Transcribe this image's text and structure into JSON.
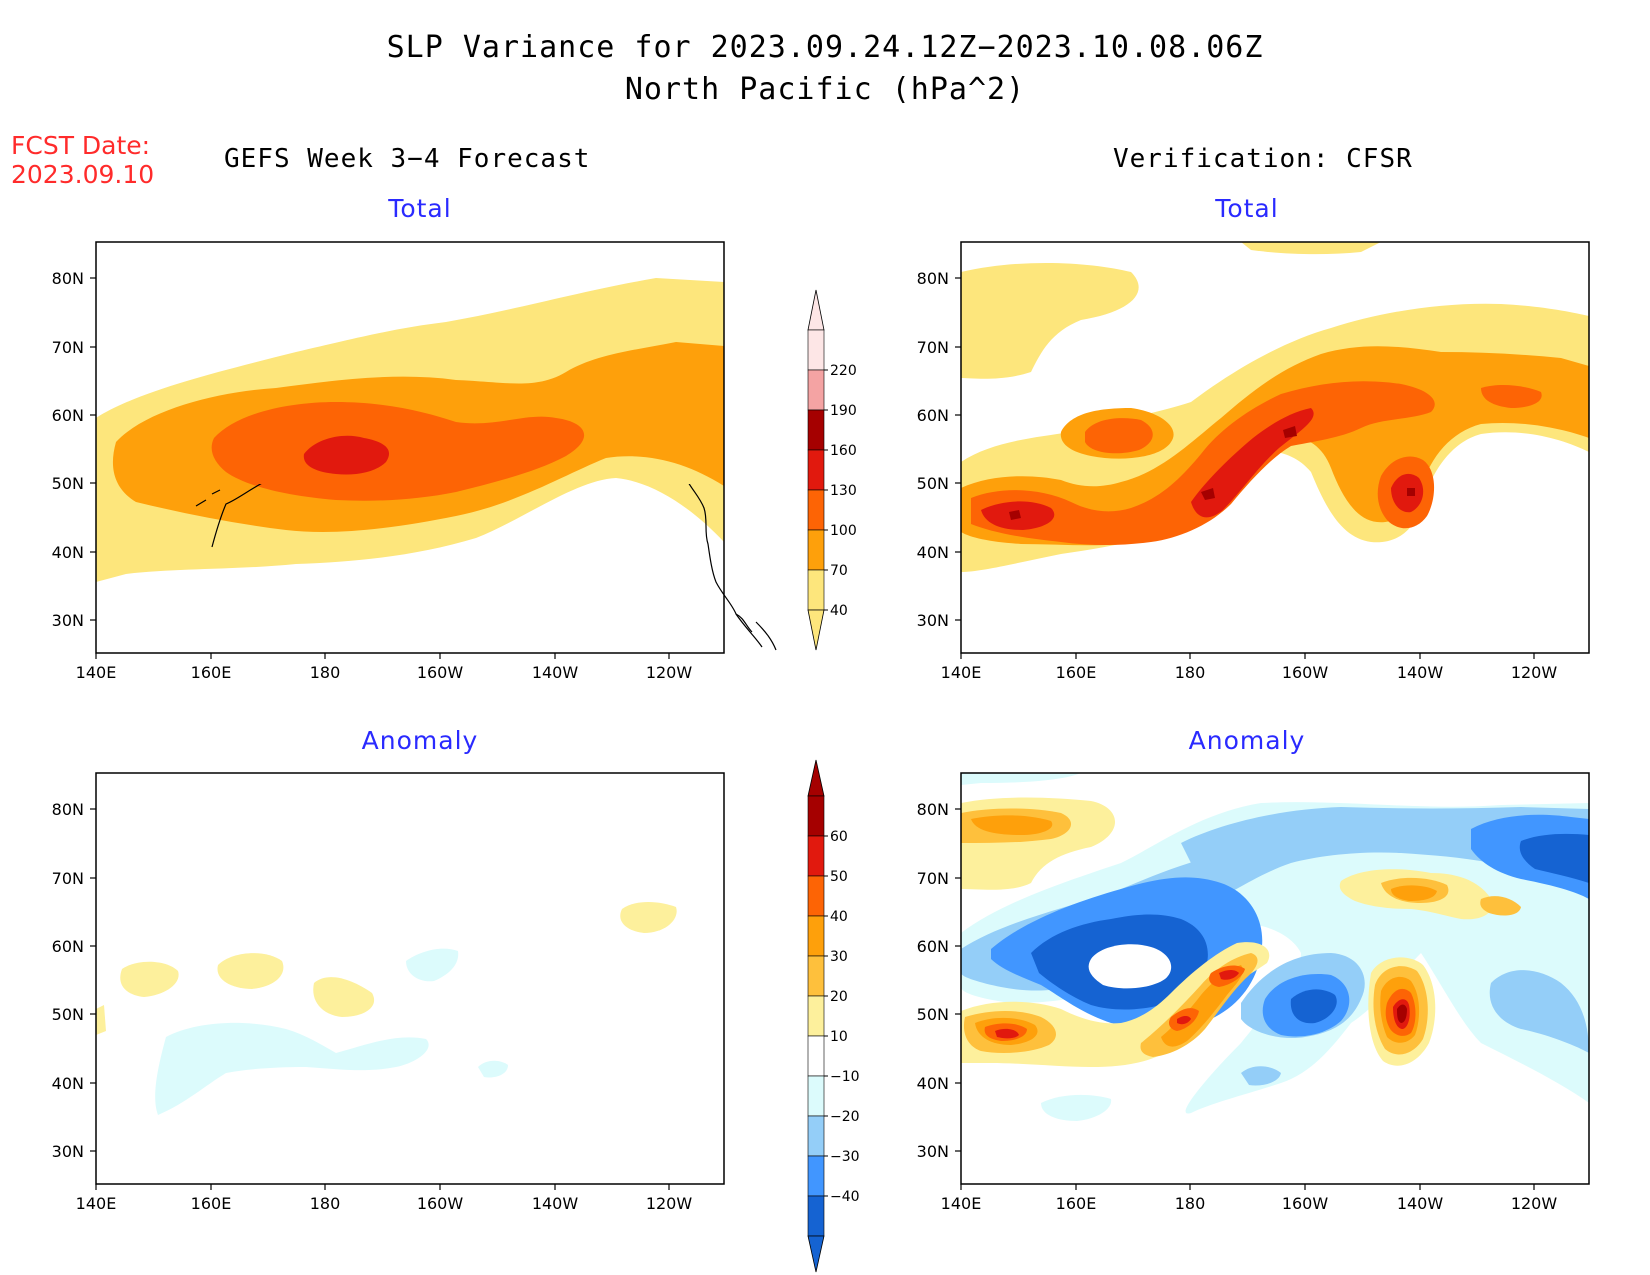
{
  "title": {
    "line1": "SLP Variance for 2023.09.24.12Z−2023.10.08.06Z",
    "line2": "North Pacific (hPa^2)"
  },
  "forecast_date": {
    "label": "FCST Date:",
    "value": "2023.09.10"
  },
  "columns": {
    "left": "GEFS Week 3−4 Forecast",
    "right": "Verification: CFSR"
  },
  "panels": [
    {
      "id": "gefs-total",
      "subtitle": "Total"
    },
    {
      "id": "cfsr-total",
      "subtitle": "Total"
    },
    {
      "id": "gefs-anomaly",
      "subtitle": "Anomaly"
    },
    {
      "id": "cfsr-anomaly",
      "subtitle": "Anomaly"
    }
  ],
  "axes": {
    "lat_ticks": [
      "80N",
      "70N",
      "60N",
      "50N",
      "40N",
      "30N"
    ],
    "lon_ticks": [
      "140E",
      "160E",
      "180",
      "160W",
      "140W",
      "120W"
    ]
  },
  "colorbars": {
    "total": {
      "labels": [
        "220",
        "190",
        "160",
        "130",
        "100",
        "70",
        "40"
      ],
      "colors": [
        "#fde6e6",
        "#f4a3a3",
        "#a50000",
        "#e1190e",
        "#fd6405",
        "#fea00b",
        "#fde67c"
      ]
    },
    "anomaly": {
      "labels": [
        "60",
        "50",
        "40",
        "30",
        "20",
        "10",
        "−10",
        "−20",
        "−30",
        "−40"
      ],
      "colors": [
        "#a50000",
        "#e1190e",
        "#fd6405",
        "#fea00b",
        "#fec03c",
        "#fdf09c",
        "#ffffff",
        "#dcfbfc",
        "#94cef8",
        "#4196ff",
        "#1563d2"
      ]
    }
  }
}
